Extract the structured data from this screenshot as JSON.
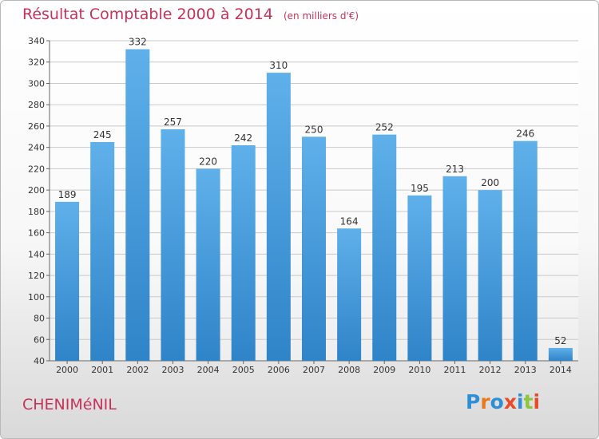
{
  "title": {
    "main": "Résultat Comptable 2000 à 2014",
    "sub": "(en milliers d'€)"
  },
  "commune": "CHENIMéNIL",
  "logo": {
    "letters": [
      "P",
      "r",
      "o",
      "x",
      "i",
      "t",
      "i"
    ],
    "colors": [
      "#2f8fd6",
      "#e87a1e",
      "#2f8fd6",
      "#e84a2a",
      "#2f8fd6",
      "#8cc63f",
      "#e84a2a"
    ]
  },
  "colors": {
    "accent": "#c8325a",
    "bar_light": "#5fb0ea",
    "bar_dark": "#2f84c8"
  },
  "chart_data": {
    "type": "bar",
    "categories": [
      "2000",
      "2001",
      "2002",
      "2003",
      "2004",
      "2005",
      "2006",
      "2007",
      "2008",
      "2009",
      "2010",
      "2011",
      "2012",
      "2013",
      "2014"
    ],
    "values": [
      189,
      245,
      332,
      257,
      220,
      242,
      310,
      250,
      164,
      252,
      195,
      213,
      200,
      246,
      52
    ],
    "ylim": [
      40,
      340
    ],
    "yticks": [
      40,
      60,
      80,
      100,
      120,
      140,
      160,
      180,
      200,
      220,
      240,
      260,
      280,
      300,
      320,
      340
    ],
    "grid": true,
    "data_labels": true
  }
}
